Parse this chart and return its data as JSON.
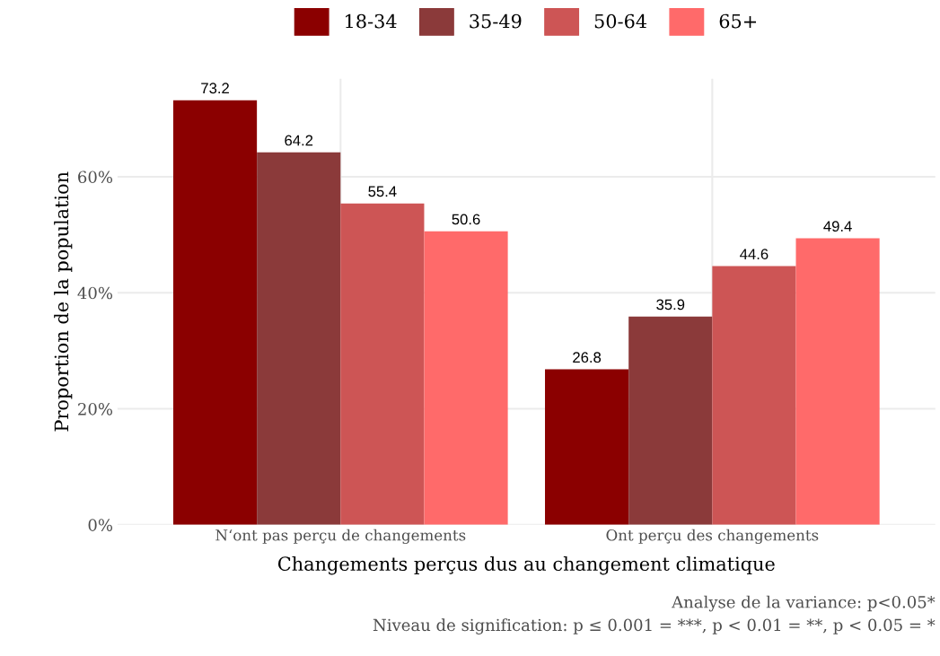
{
  "chart_data": {
    "type": "bar",
    "xlabel": "Changements perçus dus au changement climatique",
    "ylabel": "Proportion de la population",
    "categories": [
      "N‘ont pas perçu de changements",
      "Ont perçu des changements"
    ],
    "series": [
      {
        "name": "18-34",
        "color": "#8b0000",
        "values": [
          73.2,
          26.8
        ]
      },
      {
        "name": "35-49",
        "color": "#8b3a3a",
        "values": [
          64.2,
          35.9
        ]
      },
      {
        "name": "50-64",
        "color": "#cd5555",
        "values": [
          55.4,
          44.6
        ]
      },
      {
        "name": "65+",
        "color": "#ff6a6a",
        "values": [
          50.6,
          49.4
        ]
      }
    ],
    "ylim": [
      0,
      76.9
    ],
    "yticks": [
      {
        "value": 0,
        "label": "0%"
      },
      {
        "value": 20,
        "label": "20%"
      },
      {
        "value": 40,
        "label": "40%"
      },
      {
        "value": 60,
        "label": "60%"
      }
    ],
    "data_labels": true,
    "grid": true,
    "legend": "top",
    "annotations": [
      "Analyse de la variance: p<0.05*",
      "Niveau de signification: p ≤ 0.001 = ***, p < 0.01 = **, p < 0.05 = *"
    ]
  }
}
